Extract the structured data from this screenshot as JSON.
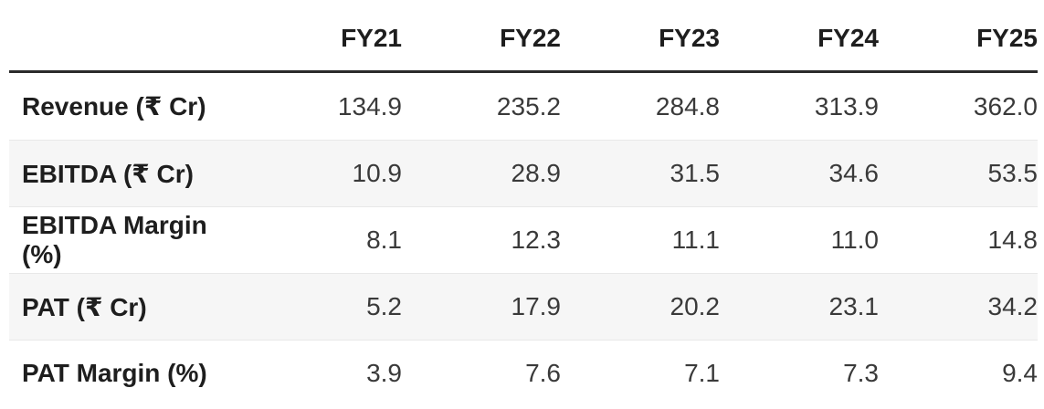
{
  "table": {
    "columns": [
      "FY21",
      "FY22",
      "FY23",
      "FY24",
      "FY25"
    ],
    "rows": [
      {
        "label": "Revenue (₹ Cr)",
        "values": [
          "134.9",
          "235.2",
          "284.8",
          "313.9",
          "362.0"
        ]
      },
      {
        "label": "EBITDA (₹ Cr)",
        "values": [
          "10.9",
          "28.9",
          "31.5",
          "34.6",
          "53.5"
        ]
      },
      {
        "label": "EBITDA Margin (%)",
        "values": [
          "8.1",
          "12.3",
          "11.1",
          "11.0",
          "14.8"
        ]
      },
      {
        "label": "PAT (₹ Cr)",
        "values": [
          "5.2",
          "17.9",
          "20.2",
          "23.1",
          "34.2"
        ]
      },
      {
        "label": "PAT Margin (%)",
        "values": [
          "3.9",
          "7.6",
          "7.1",
          "7.3",
          "9.4"
        ]
      }
    ],
    "colors": {
      "header_rule": "#2b2b2b",
      "row_separator": "#e8e8e8",
      "alt_row_background": "#f6f6f6",
      "label_text": "#1e1e1e",
      "value_text": "#3a3a3a"
    }
  },
  "chart_data": {
    "type": "table",
    "categories": [
      "FY21",
      "FY22",
      "FY23",
      "FY24",
      "FY25"
    ],
    "series": [
      {
        "name": "Revenue (₹ Cr)",
        "values": [
          134.9,
          235.2,
          284.8,
          313.9,
          362.0
        ]
      },
      {
        "name": "EBITDA (₹ Cr)",
        "values": [
          10.9,
          28.9,
          31.5,
          34.6,
          53.5
        ]
      },
      {
        "name": "EBITDA Margin (%)",
        "values": [
          8.1,
          12.3,
          11.1,
          11.0,
          14.8
        ]
      },
      {
        "name": "PAT (₹ Cr)",
        "values": [
          5.2,
          17.9,
          20.2,
          23.1,
          34.2
        ]
      },
      {
        "name": "PAT Margin (%)",
        "values": [
          3.9,
          7.6,
          7.1,
          7.3,
          9.4
        ]
      }
    ]
  }
}
